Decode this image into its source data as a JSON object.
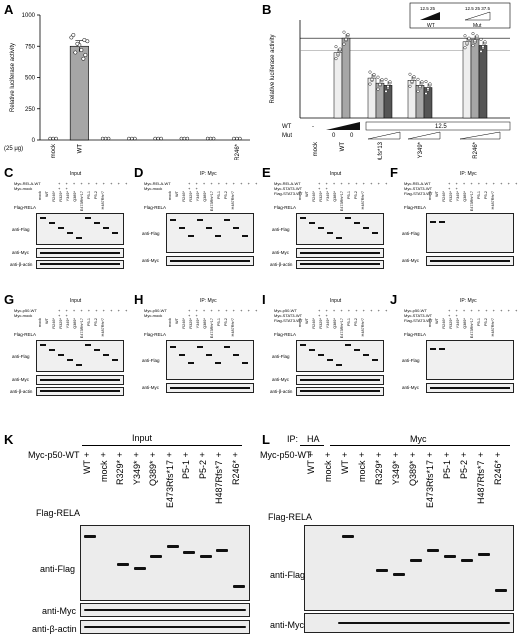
{
  "panels": {
    "A": "A",
    "B": "B",
    "C": "C",
    "D": "D",
    "E": "E",
    "F": "F",
    "G": "G",
    "H": "H",
    "I": "I",
    "J": "J",
    "K": "K",
    "L": "L"
  },
  "chart_data": [
    {
      "panel": "A",
      "type": "bar",
      "ylabel": "Relative luciferase activity",
      "ylim": [
        0,
        1000
      ],
      "yticks": [
        0,
        250,
        500,
        750,
        1000
      ],
      "xlabel_prefix": "(25 μg)",
      "categories": [
        "mock",
        "WT",
        "",
        "",
        "",
        "",
        "",
        "R246*"
      ],
      "values": [
        0,
        750,
        0,
        0,
        0,
        0,
        0,
        0
      ],
      "error": [
        0,
        45,
        0,
        0,
        0,
        0,
        0,
        0
      ],
      "colors": {
        "bar": "#a6a6a6",
        "points": "#ffffff"
      }
    },
    {
      "panel": "B",
      "type": "bar",
      "ylabel": "Relative luciferase activity",
      "legend_box": {
        "wt_label": "WT",
        "mut_label": "Mut",
        "numbers_wt": "12.5 25",
        "numbers_mut": "12.5 25 37.5"
      },
      "row_labels": {
        "wt": "WT",
        "mut": "Mut"
      },
      "wt_values": [
        "-",
        "",
        "",
        "12.5"
      ],
      "mut_zeros": [
        "0",
        "0"
      ],
      "groups": [
        "mock",
        "WT",
        "Y349Lfs*13",
        "Y349*",
        "R246*"
      ],
      "series": [
        {
          "values": [
            0,
            0.9,
            0.55,
            0.52,
            1.05
          ]
        },
        {
          "values": [
            0,
            1.1,
            0.48,
            0.45,
            1.08
          ]
        },
        {
          "values": [
            0,
            null,
            0.45,
            0.42,
            1.0
          ]
        }
      ]
    }
  ],
  "blots": {
    "C": {
      "top": "Input",
      "rows": [
        "Myc-RELA-WT",
        "Myc-mock"
      ],
      "flag": "Flag-RELA",
      "labels": [
        "anti-Flag",
        "anti-Myc",
        "anti-β-actin"
      ]
    },
    "D": {
      "top": "IP: Myc",
      "rows": [
        "Myc-RELA-WT",
        "Myc-mock"
      ],
      "flag": "Flag-RELA",
      "labels": [
        "anti-Flag",
        "anti-Myc"
      ]
    },
    "E": {
      "top": "Input",
      "rows": [
        "Myc-RELA-WT",
        "Myc-STAT3-WT",
        "Flag-STAT3-WT"
      ],
      "flag": "Flag-RELA",
      "labels": [
        "anti-Flag",
        "anti-Myc",
        "anti-β-actin"
      ]
    },
    "F": {
      "top": "IP: Myc",
      "rows": [
        "Myc-RELA-WT",
        "Myc-STAT3-WT",
        "Flag-STAT3-WT"
      ],
      "flag": "Flag-RELA",
      "labels": [
        "anti-Flag",
        "anti-Myc"
      ]
    },
    "G": {
      "top": "Input",
      "rows": [
        "Myc-p50-WT",
        "Myc-mock"
      ],
      "flag": "Flag-RELA",
      "labels": [
        "anti-Flag",
        "anti-Myc",
        "anti-β-actin"
      ]
    },
    "H": {
      "top": "IP: Myc",
      "rows": [
        "Myc-p50-WT",
        "Myc-mock"
      ],
      "flag": "Flag-RELA",
      "labels": [
        "anti-Flag",
        "anti-Myc"
      ]
    },
    "I": {
      "top": "Input",
      "rows": [
        "Myc-p50-WT",
        "Myc-STAT3-WT",
        "Flag-STAT3-WT"
      ],
      "flag": "Flag-RELA",
      "labels": [
        "anti-Flag",
        "anti-Myc",
        "anti-β-actin"
      ]
    },
    "J": {
      "top": "IP: Myc",
      "rows": [
        "Myc-p50-WT",
        "Myc-STAT3-WT",
        "Flag-STAT3-WT"
      ],
      "flag": "Flag-RELA",
      "labels": [
        "anti-Flag",
        "anti-Myc"
      ]
    },
    "K": {
      "top": "Input",
      "myc": "Myc-p50-WT",
      "flag": "Flag-RELA",
      "lanes": [
        "WT",
        "mock",
        "R329*",
        "Y349*",
        "Q389*",
        "E473Rfs*17",
        "P5-1",
        "P5-2",
        "H487Rfs*7",
        "R246*"
      ],
      "plus": "+",
      "labels": [
        "anti-Flag",
        "anti-Myc",
        "anti-β-actin"
      ]
    },
    "L": {
      "ip": "IP:",
      "ha": "HA",
      "myc_top": "Myc",
      "myc": "Myc-p50-WT",
      "flag": "Flag-RELA",
      "lanes": [
        "WT",
        "mock",
        "WT",
        "mock",
        "R329*",
        "Y349*",
        "Q389*",
        "E473Rfs*17",
        "P5-1",
        "P5-2",
        "H487Rfs*7",
        "R246*"
      ],
      "plus": "+",
      "labels": [
        "anti-Flag",
        "anti-Myc"
      ]
    }
  },
  "small_lanes": [
    "mock",
    "WT",
    "R246*",
    "R329*",
    "Y349*",
    "Q389*",
    "E473Rfs*17",
    "P5-1",
    "P5-2",
    "H487Rfs*7"
  ]
}
